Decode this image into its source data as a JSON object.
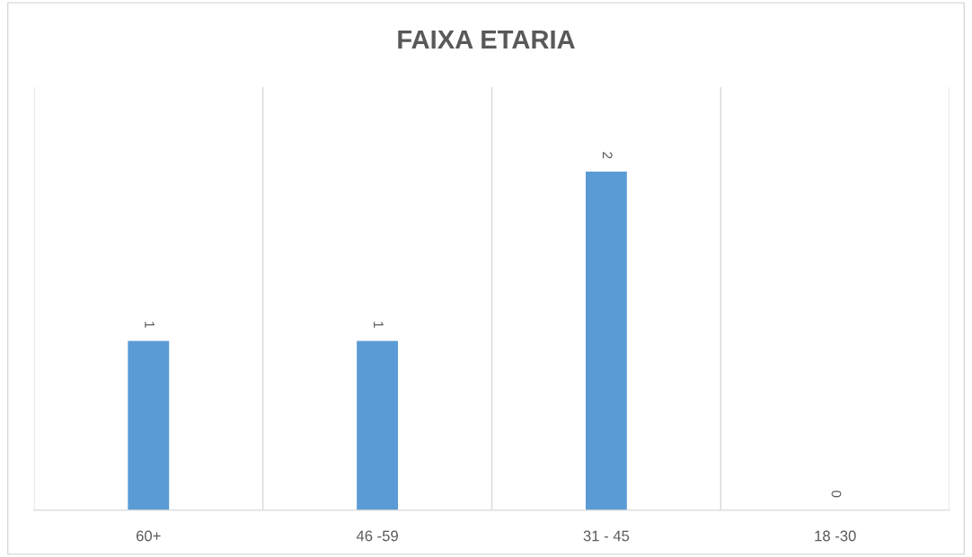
{
  "chart_data": {
    "type": "bar",
    "title": "FAIXA ETARIA",
    "categories": [
      "60+",
      "46 -59",
      "31 - 45",
      "18 -30"
    ],
    "values": [
      1,
      1,
      2,
      0
    ],
    "color": "#5b9bd5",
    "data_labels": true,
    "grid": "x",
    "legend": false,
    "tick_labels": "x"
  }
}
